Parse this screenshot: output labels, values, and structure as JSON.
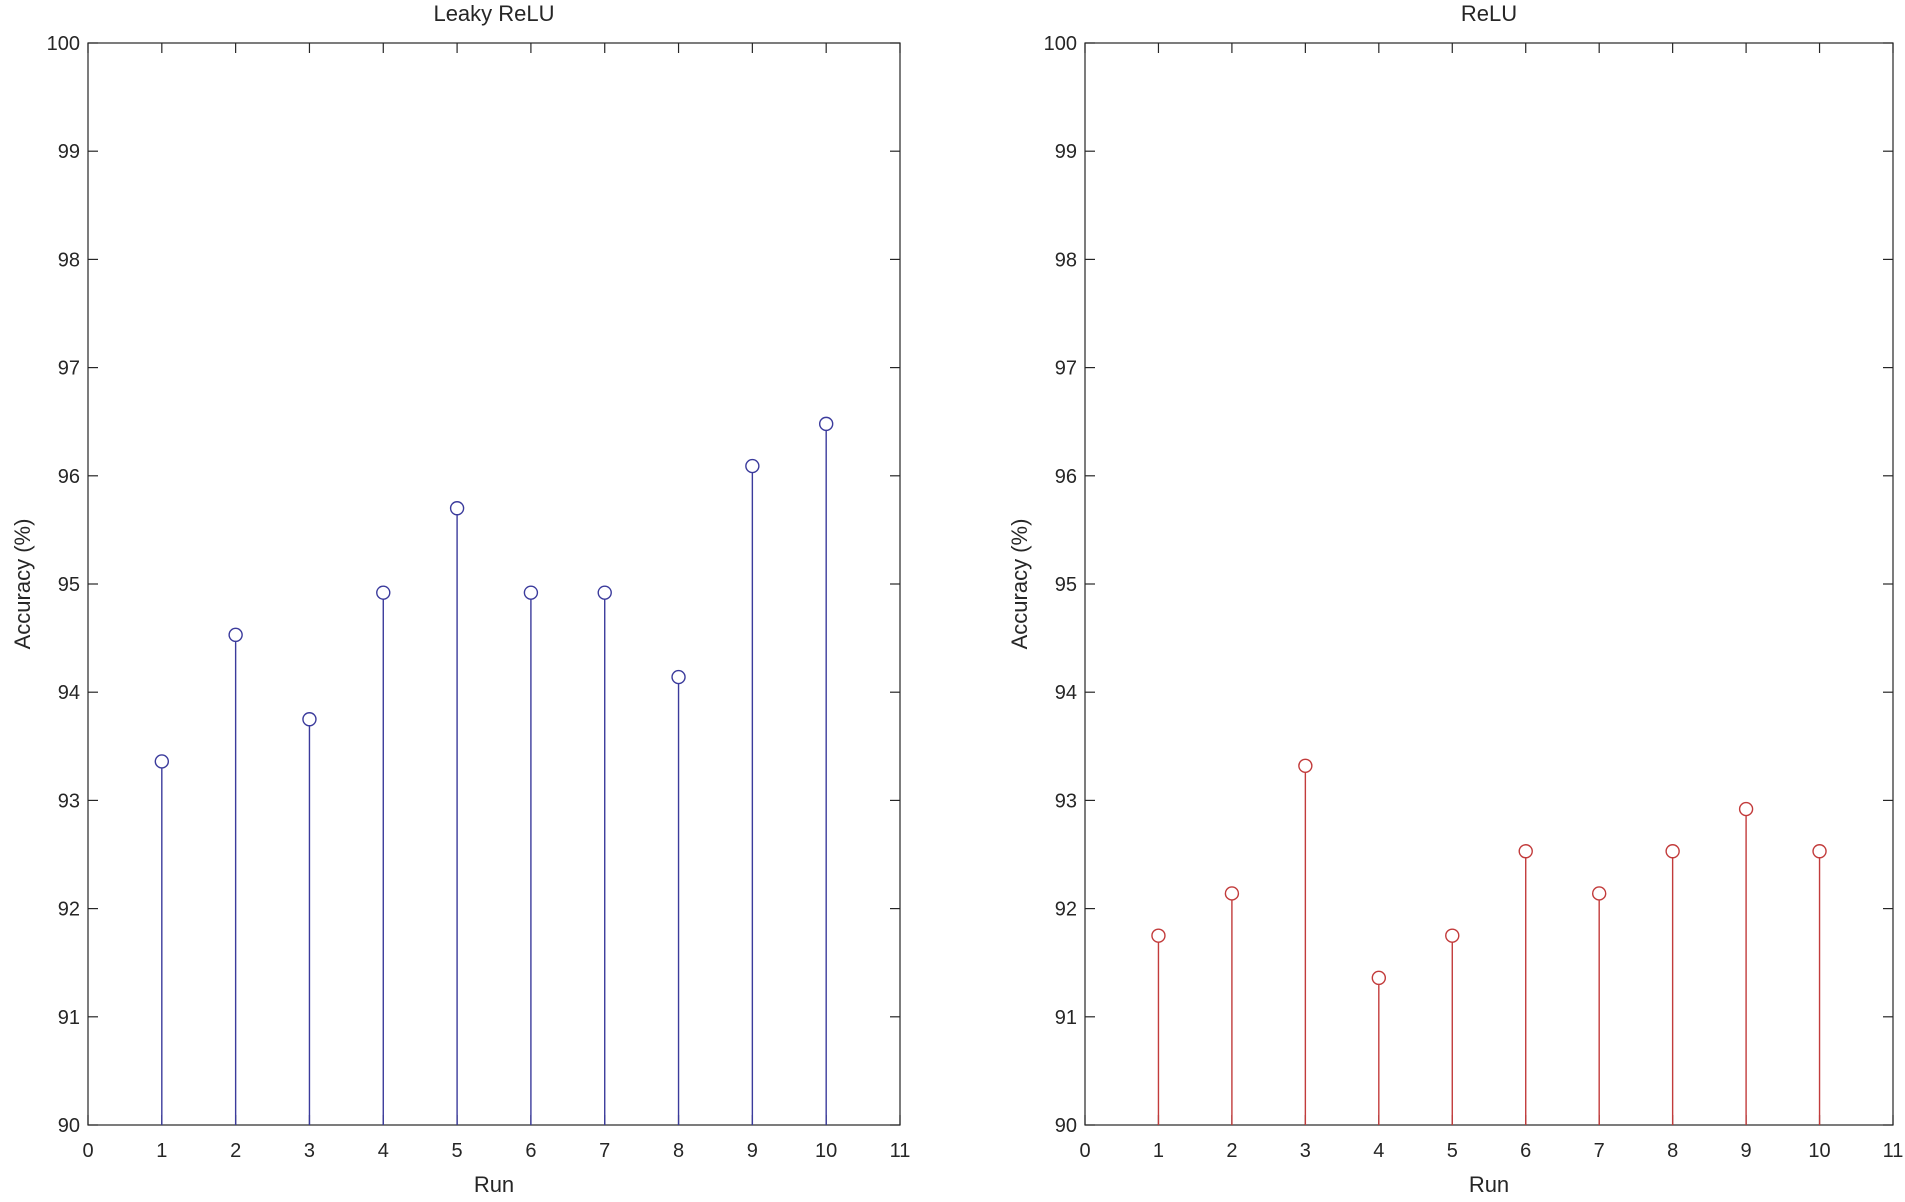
{
  "chart_data": [
    {
      "type": "stem",
      "title": "Leaky ReLU",
      "xlabel": "Run",
      "ylabel": "Accuracy (%)",
      "xlim": [
        0,
        11
      ],
      "ylim": [
        90,
        100
      ],
      "xticks": [
        0,
        1,
        2,
        3,
        4,
        5,
        6,
        7,
        8,
        9,
        10,
        11
      ],
      "yticks": [
        90,
        91,
        92,
        93,
        94,
        95,
        96,
        97,
        98,
        99,
        100
      ],
      "x": [
        1,
        2,
        3,
        4,
        5,
        6,
        7,
        8,
        9,
        10
      ],
      "values": [
        93.36,
        94.53,
        93.75,
        94.92,
        95.7,
        94.92,
        94.92,
        94.14,
        96.09,
        96.48
      ],
      "color": "#3b3b9c",
      "grid": false
    },
    {
      "type": "stem",
      "title": "ReLU",
      "xlabel": "Run",
      "ylabel": "Accuracy (%)",
      "xlim": [
        0,
        11
      ],
      "ylim": [
        90,
        100
      ],
      "xticks": [
        0,
        1,
        2,
        3,
        4,
        5,
        6,
        7,
        8,
        9,
        10,
        11
      ],
      "yticks": [
        90,
        91,
        92,
        93,
        94,
        95,
        96,
        97,
        98,
        99,
        100
      ],
      "x": [
        1,
        2,
        3,
        4,
        5,
        6,
        7,
        8,
        9,
        10
      ],
      "values": [
        91.75,
        92.14,
        93.32,
        91.36,
        91.75,
        92.53,
        92.14,
        92.53,
        92.92,
        92.53
      ],
      "color": "#c23b3b",
      "grid": false
    }
  ]
}
